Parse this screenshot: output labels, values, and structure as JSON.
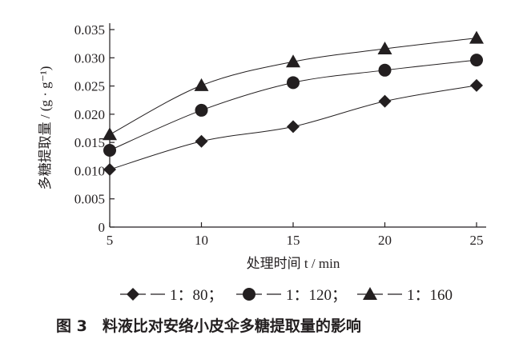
{
  "chart_data": {
    "type": "line",
    "title": "",
    "caption": "图 3　料液比对安络小皮伞多糖提取量的影响",
    "xlabel": "处理时间 t / min",
    "ylabel": "多糖提取量 / (g · g⁻¹)",
    "xlim": [
      5,
      25
    ],
    "ylim": [
      0,
      0.035
    ],
    "xticks": [
      "5",
      "10",
      "15",
      "20",
      "25"
    ],
    "yticks": [
      "0",
      "0.005",
      "0.010",
      "0.015",
      "0.020",
      "0.025",
      "0.030",
      "0.035"
    ],
    "grid": false,
    "legend_position": "bottom",
    "x": [
      5,
      10,
      15,
      20,
      25
    ],
    "series": [
      {
        "name": "1：80",
        "marker": "diamond",
        "values": [
          0.0102,
          0.0152,
          0.0178,
          0.0223,
          0.0251
        ]
      },
      {
        "name": "1：120",
        "marker": "circle",
        "values": [
          0.0136,
          0.0207,
          0.0256,
          0.0278,
          0.0296
        ]
      },
      {
        "name": "1：160",
        "marker": "triangle",
        "values": [
          0.0164,
          0.0251,
          0.0293,
          0.0316,
          0.0335
        ]
      }
    ],
    "colors": {
      "ink": "#231f20"
    }
  }
}
